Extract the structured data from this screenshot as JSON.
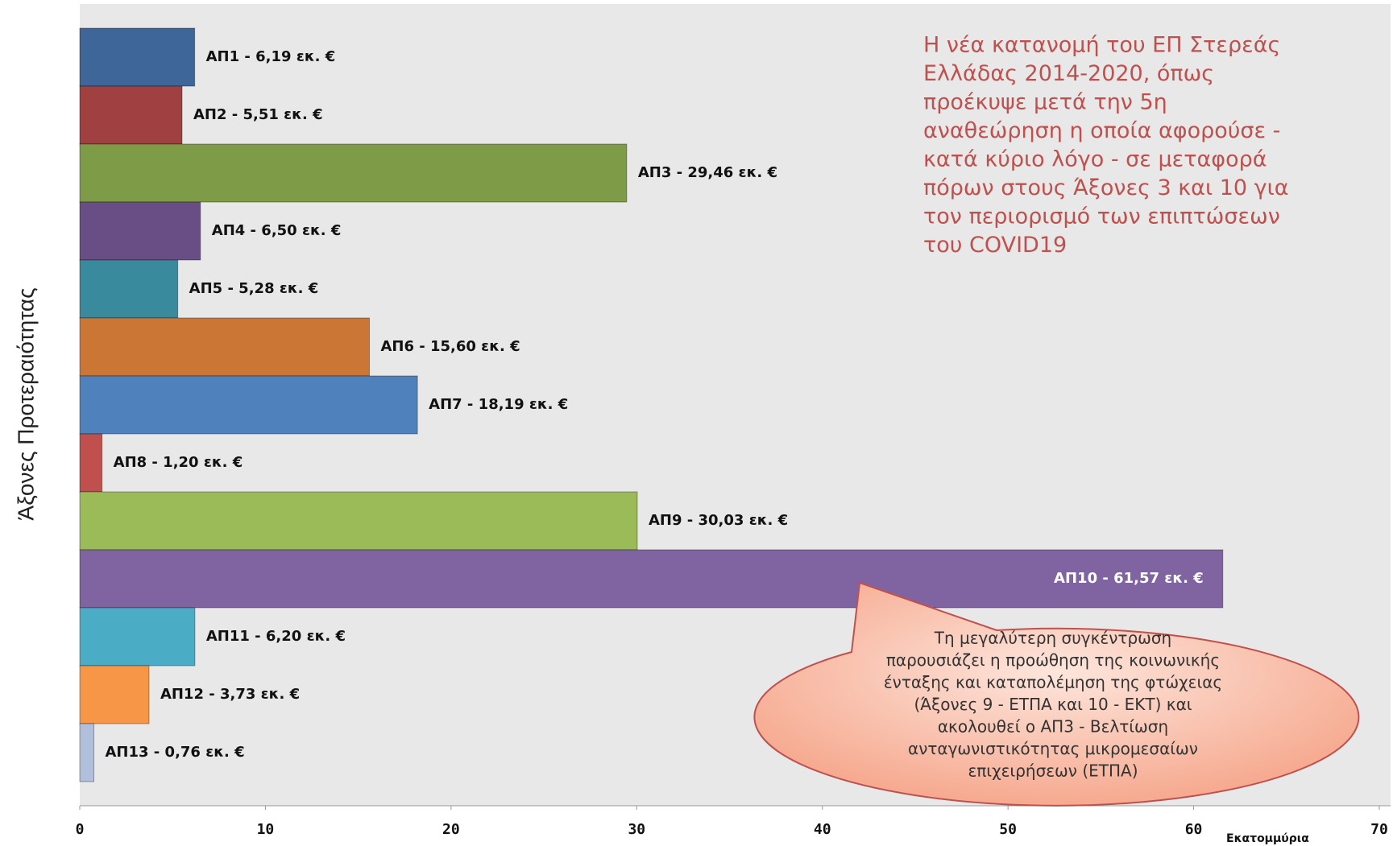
{
  "chart_data": {
    "type": "barh",
    "values": [
      6.19,
      5.51,
      29.46,
      6.5,
      5.28,
      15.6,
      18.19,
      1.2,
      30.03,
      61.57,
      6.2,
      3.73,
      0.76
    ],
    "value_labels": [
      "ΑΠ1 - 6,19 εκ. €",
      "ΑΠ2 - 5,51 εκ. €",
      "ΑΠ3 - 29,46 εκ. €",
      "ΑΠ4 - 6,50 εκ. €",
      "ΑΠ5 - 5,28 εκ. €",
      "ΑΠ6 - 15,60 εκ. €",
      "ΑΠ7 - 18,19 εκ. €",
      "ΑΠ8 - 1,20 εκ. €",
      "ΑΠ9 - 30,03 εκ. €",
      "ΑΠ10 - 61,57 εκ. €",
      "ΑΠ11 - 6,20 εκ. €",
      "ΑΠ12 - 3,73 εκ. €",
      "ΑΠ13 - 0,76 εκ. €"
    ],
    "colors": [
      "#3e6699",
      "#a04040",
      "#7e9b47",
      "#694d85",
      "#3a8a9e",
      "#cc7636",
      "#4f81bd",
      "#c0504d",
      "#9bbb59",
      "#8064a2",
      "#4bacc6",
      "#f79646",
      "#b0c0dc"
    ],
    "xlim": [
      0,
      70
    ],
    "xticks": [
      0,
      10,
      20,
      30,
      40,
      50,
      60,
      70
    ],
    "xlabel": "Εκατομμύρια",
    "ylabel": "Άξονες Προτεραιότητας",
    "annotation": [
      "Η νέα κατανομή του ΕΠ  Στερεάς",
      "Ελλάδας 2014-2020, όπως",
      "προέκυψε μετά την 5η",
      "αναθεώρηση η οποία αφορούσε -",
      "κατά κύριο λόγο - σε μεταφορά",
      "πόρων στους Άξονες 3 και 10 για",
      "τον περιορισμό των επιπτώσεων",
      "του COVID19"
    ],
    "callout": [
      "Τη μεγαλύτερη συγκέντρωση",
      "παρουσιάζει η προώθηση της κοινωνικής",
      "ένταξης και καταπολέμηση της φτώχειας",
      "(Άξονες 9 - ΕΤΠΑ και 10 - ΕΚΤ) και",
      "ακολουθεί ο ΑΠ3 - Βελτίωση",
      "ανταγωνιστικότητας μικρομεσαίων",
      "επιχειρήσεων (ΕΤΠΑ)"
    ]
  }
}
